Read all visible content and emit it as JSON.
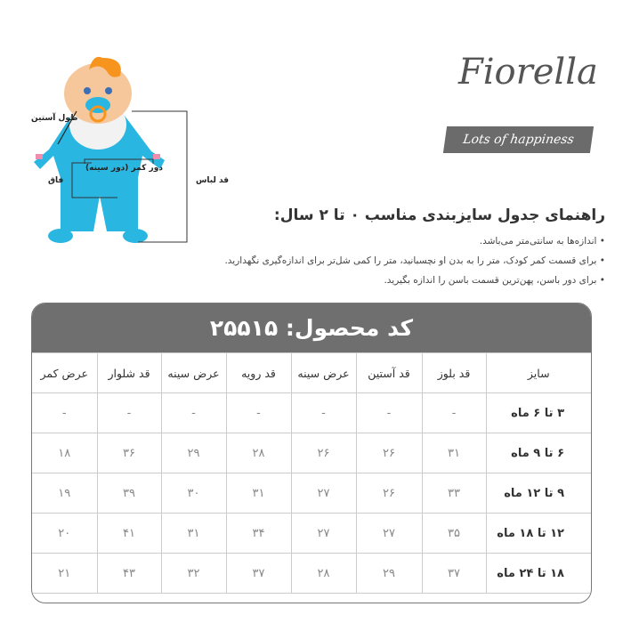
{
  "diagram": {
    "sleeve_length": "طول آستین",
    "waist": "دور کمر (دور سینه)",
    "crotch": "فاق",
    "garment_length": "قد لباس"
  },
  "logo": {
    "name": "Fiorella",
    "tagline": "Lots of happiness"
  },
  "guide": {
    "title": "راهنمای جدول سایزبندی مناسب ۰ تا ۲ سال:",
    "notes": [
      "اندازه‌ها به سانتی‌متر می‌باشد.",
      "برای قسمت کمر کودک، متر را به بدن او نچسبانید، متر را کمی شل‌تر برای اندازه‌گیری نگهدارید.",
      "برای دور باسن، پهن‌ترین قسمت باسن را اندازه بگیرید."
    ]
  },
  "table": {
    "product_code": "کد محصول: ۲۵۵۱۵",
    "headers": [
      "سایز",
      "قد بلوز",
      "قد آستین",
      "عرض سینه",
      "قد رویه",
      "عرض سینه",
      "قد شلوار",
      "عرض کمر"
    ],
    "rows": [
      [
        "۳ تا ۶ ماه",
        "-",
        "-",
        "-",
        "-",
        "-",
        "-",
        "-"
      ],
      [
        "۶ تا ۹ ماه",
        "۳۱",
        "۲۶",
        "۲۶",
        "۲۸",
        "۲۹",
        "۳۶",
        "۱۸"
      ],
      [
        "۹ تا ۱۲ ماه",
        "۳۳",
        "۲۶",
        "۲۷",
        "۳۱",
        "۳۰",
        "۳۹",
        "۱۹"
      ],
      [
        "۱۲ تا ۱۸ ماه",
        "۳۵",
        "۲۷",
        "۲۷",
        "۳۴",
        "۳۱",
        "۴۱",
        "۲۰"
      ],
      [
        "۱۸ تا ۲۴ ماه",
        "۳۷",
        "۲۹",
        "۲۸",
        "۳۷",
        "۳۲",
        "۴۳",
        "۲۱"
      ]
    ]
  }
}
